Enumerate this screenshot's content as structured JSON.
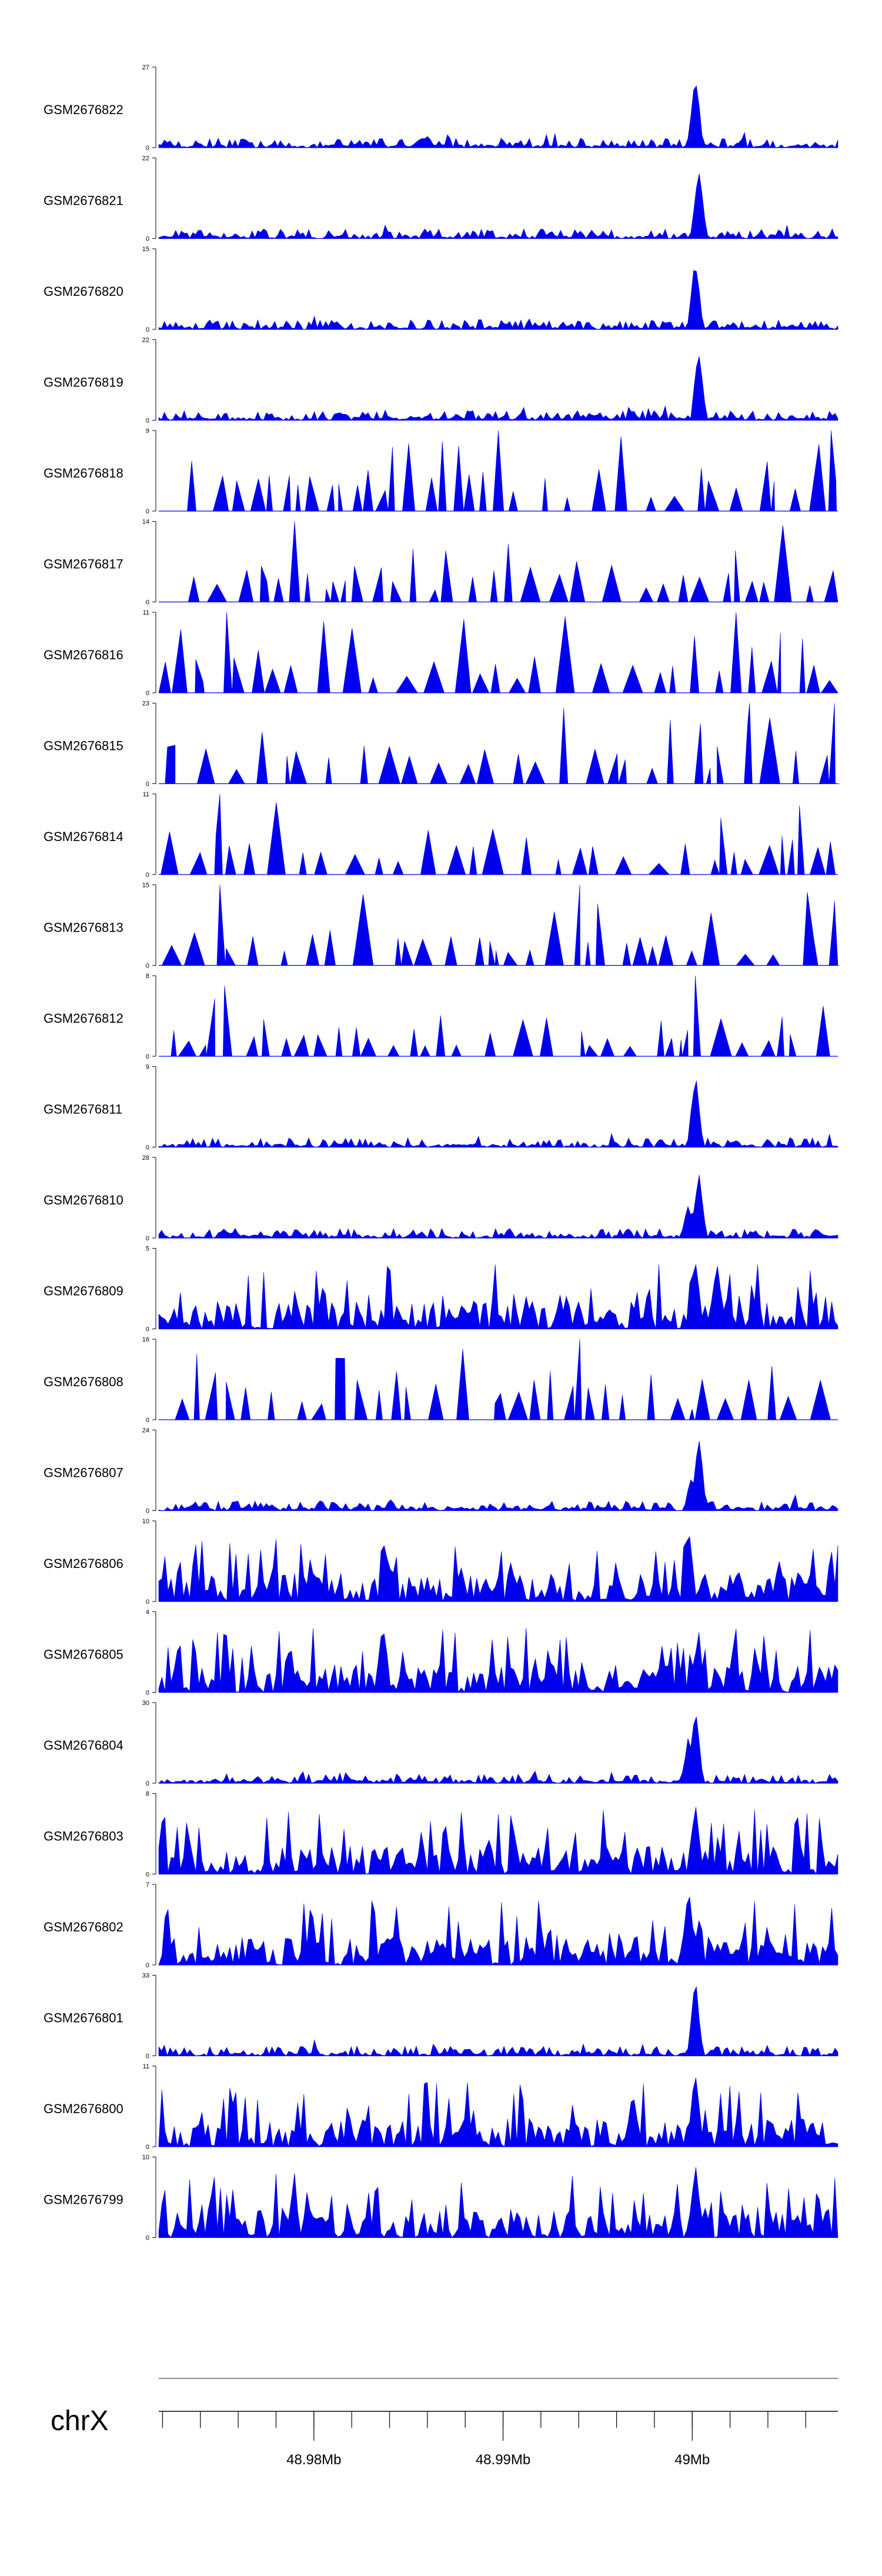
{
  "chart_data": {
    "type": "area",
    "title": "",
    "chromosome": "chrX",
    "x_range_mb": [
      48.9718,
      49.0077
    ],
    "x_tick_labels": [
      {
        "pos_mb": 48.98,
        "label": "48.98Mb"
      },
      {
        "pos_mb": 48.99,
        "label": "48.99Mb"
      },
      {
        "pos_mb": 49.0,
        "label": "49Mb"
      }
    ],
    "minor_tick_step_mb": 0.002,
    "colors": {
      "fill": "#0000ee",
      "axis": "#000000",
      "ideogram": "#8c8c8c"
    },
    "tracks": [
      {
        "name": "GSM2676822",
        "ymax": 27,
        "ymin_label": "0",
        "ymax_label": "27",
        "style": "dense",
        "peaks": [
          {
            "at": 0.79,
            "h": 1.0
          }
        ]
      },
      {
        "name": "GSM2676821",
        "ymax": 22,
        "ymin_label": "0",
        "ymax_label": "22",
        "style": "dense",
        "peaks": [
          {
            "at": 0.795,
            "h": 1.0
          }
        ]
      },
      {
        "name": "GSM2676820",
        "ymax": 15,
        "ymin_label": "0",
        "ymax_label": "15",
        "style": "dense",
        "peaks": [
          {
            "at": 0.79,
            "h": 0.95
          }
        ]
      },
      {
        "name": "GSM2676819",
        "ymax": 22,
        "ymin_label": "0",
        "ymax_label": "22",
        "style": "dense",
        "peaks": [
          {
            "at": 0.795,
            "h": 1.0
          }
        ]
      },
      {
        "name": "GSM2676818",
        "ymax": 9,
        "ymin_label": "0",
        "ymax_label": "9",
        "style": "sparse",
        "peaks": [
          {
            "at": 0.5,
            "h": 1.0
          },
          {
            "at": 0.99,
            "h": 1.0
          }
        ]
      },
      {
        "name": "GSM2676817",
        "ymax": 14,
        "ymin_label": "0",
        "ymax_label": "14",
        "style": "sparse",
        "peaks": [
          {
            "at": 0.2,
            "h": 1.0
          }
        ]
      },
      {
        "name": "GSM2676816",
        "ymax": 11,
        "ymin_label": "0",
        "ymax_label": "11",
        "style": "sparse",
        "peaks": [
          {
            "at": 0.1,
            "h": 1.0
          },
          {
            "at": 0.85,
            "h": 1.0
          }
        ]
      },
      {
        "name": "GSM2676815",
        "ymax": 23,
        "ymin_label": "0",
        "ymax_label": "23",
        "style": "sparse",
        "peaks": [
          {
            "at": 0.87,
            "h": 1.0
          },
          {
            "at": 0.995,
            "h": 1.0
          }
        ]
      },
      {
        "name": "GSM2676814",
        "ymax": 11,
        "ymin_label": "0",
        "ymax_label": "11",
        "style": "sparse",
        "peaks": [
          {
            "at": 0.09,
            "h": 1.0
          }
        ]
      },
      {
        "name": "GSM2676813",
        "ymax": 15,
        "ymin_label": "0",
        "ymax_label": "15",
        "style": "sparse",
        "peaks": [
          {
            "at": 0.09,
            "h": 1.0
          },
          {
            "at": 0.62,
            "h": 1.0
          },
          {
            "at": 0.995,
            "h": 0.8
          }
        ]
      },
      {
        "name": "GSM2676812",
        "ymax": 8,
        "ymin_label": "0",
        "ymax_label": "8",
        "style": "sparse",
        "peaks": [
          {
            "at": 0.79,
            "h": 1.0
          }
        ]
      },
      {
        "name": "GSM2676811",
        "ymax": 9,
        "ymin_label": "0",
        "ymax_label": "9",
        "style": "dense",
        "peaks": [
          {
            "at": 0.79,
            "h": 1.0
          }
        ]
      },
      {
        "name": "GSM2676810",
        "ymax": 28,
        "ymin_label": "0",
        "ymax_label": "28",
        "style": "dense",
        "peaks": [
          {
            "at": 0.795,
            "h": 0.9
          },
          {
            "at": 0.78,
            "h": 0.45
          }
        ]
      },
      {
        "name": "GSM2676809",
        "ymax": 5,
        "ymin_label": "0",
        "ymax_label": "5",
        "style": "busy",
        "peaks": [
          {
            "at": 0.79,
            "h": 1.0
          }
        ]
      },
      {
        "name": "GSM2676808",
        "ymax": 16,
        "ymin_label": "0",
        "ymax_label": "16",
        "style": "sparse",
        "peaks": [
          {
            "at": 0.62,
            "h": 1.0
          },
          {
            "at": 0.35,
            "h": 0.6
          }
        ]
      },
      {
        "name": "GSM2676807",
        "ymax": 24,
        "ymin_label": "0",
        "ymax_label": "24",
        "style": "dense",
        "peaks": [
          {
            "at": 0.795,
            "h": 1.0
          },
          {
            "at": 0.785,
            "h": 0.5
          }
        ]
      },
      {
        "name": "GSM2676806",
        "ymax": 10,
        "ymin_label": "0",
        "ymax_label": "10",
        "style": "busy",
        "peaks": [
          {
            "at": 0.78,
            "h": 1.0
          }
        ]
      },
      {
        "name": "GSM2676805",
        "ymax": 4,
        "ymin_label": "0",
        "ymax_label": "4",
        "style": "busy",
        "peaks": [
          {
            "at": 0.33,
            "h": 1.0
          }
        ]
      },
      {
        "name": "GSM2676804",
        "ymax": 30,
        "ymin_label": "0",
        "ymax_label": "30",
        "style": "dense",
        "peaks": [
          {
            "at": 0.79,
            "h": 1.0
          },
          {
            "at": 0.78,
            "h": 0.6
          }
        ]
      },
      {
        "name": "GSM2676803",
        "ymax": 8,
        "ymin_label": "0",
        "ymax_label": "8",
        "style": "busy",
        "peaks": [
          {
            "at": 0.79,
            "h": 1.0
          }
        ]
      },
      {
        "name": "GSM2676802",
        "ymax": 7,
        "ymin_label": "0",
        "ymax_label": "7",
        "style": "busy",
        "peaks": [
          {
            "at": 0.78,
            "h": 1.0
          }
        ]
      },
      {
        "name": "GSM2676801",
        "ymax": 33,
        "ymin_label": "0",
        "ymax_label": "33",
        "style": "dense",
        "peaks": [
          {
            "at": 0.79,
            "h": 1.0
          }
        ]
      },
      {
        "name": "GSM2676800",
        "ymax": 11,
        "ymin_label": "0",
        "ymax_label": "11",
        "style": "busy",
        "peaks": [
          {
            "at": 0.79,
            "h": 1.0
          }
        ]
      },
      {
        "name": "GSM2676799",
        "ymax": 10,
        "ymin_label": "0",
        "ymax_label": "10",
        "style": "busy",
        "peaks": [
          {
            "at": 0.79,
            "h": 1.0
          }
        ]
      }
    ]
  }
}
